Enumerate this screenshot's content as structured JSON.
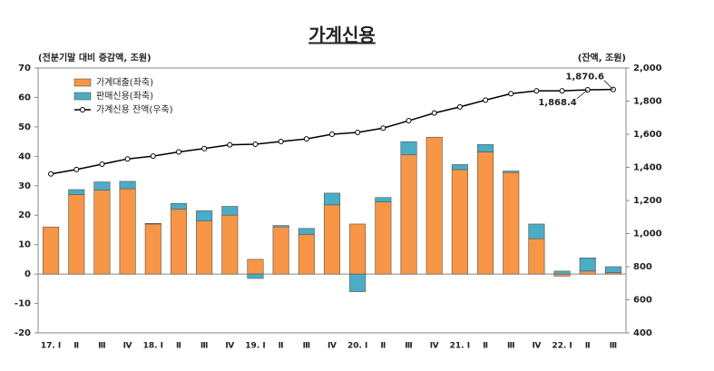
{
  "chart_data": {
    "type": "bar-line",
    "title": "가계신용",
    "y_label": "(전분기말 대비 증감액, 조원)",
    "y2_label": "(잔액, 조원)",
    "categories": [
      "17. Ⅰ",
      "Ⅱ",
      "Ⅲ",
      "Ⅳ",
      "18. Ⅰ",
      "Ⅱ",
      "Ⅲ",
      "Ⅳ",
      "19. Ⅰ",
      "Ⅱ",
      "Ⅲ",
      "Ⅳ",
      "20. Ⅰ",
      "Ⅱ",
      "Ⅲ",
      "Ⅳ",
      "21. Ⅰ",
      "Ⅱ",
      "Ⅲ",
      "Ⅳ",
      "22. Ⅰ",
      "Ⅱ",
      "Ⅲ"
    ],
    "series": [
      {
        "name": "가계대출(좌축)",
        "color": "#f79646",
        "values": [
          16,
          27,
          28.5,
          29,
          17,
          22,
          18,
          20,
          5,
          16,
          13.5,
          23.5,
          17,
          24.5,
          40.5,
          46.5,
          35.5,
          41.5,
          34.5,
          12,
          -0.7,
          1,
          0.5
        ]
      },
      {
        "name": "판매신용(좌축)",
        "color": "#4bacc6",
        "values": [
          0,
          1.7,
          2.8,
          2.5,
          0.2,
          2,
          3.5,
          3,
          -1.5,
          0.5,
          2,
          4,
          -6,
          1.5,
          4.5,
          0,
          1.7,
          2.5,
          0.5,
          5,
          1,
          4.5,
          2
        ]
      },
      {
        "name": "가계신용 잔액(우축)",
        "color": "#000000",
        "axis": "y2",
        "values": [
          1360,
          1387,
          1419,
          1451,
          1468,
          1493,
          1514,
          1536,
          1540,
          1556,
          1572,
          1600,
          1611,
          1637,
          1682,
          1728,
          1765,
          1806,
          1845,
          1862,
          1862,
          1868.4,
          1870.6
        ],
        "value_labels": [
          null,
          null,
          null,
          null,
          null,
          null,
          null,
          null,
          null,
          null,
          null,
          null,
          null,
          null,
          null,
          null,
          null,
          null,
          null,
          null,
          null,
          "1,868.4",
          "1,870.6"
        ]
      }
    ],
    "ylim": [
      -20,
      70
    ],
    "yticks": [
      -20,
      -10,
      0,
      10,
      20,
      30,
      40,
      50,
      60,
      70
    ],
    "y2lim": [
      400,
      2000
    ],
    "y2ticks": [
      400,
      600,
      800,
      {
        "value": 1000,
        "label": "1,000"
      },
      {
        "value": 1200,
        "label": "1,200"
      },
      {
        "value": 1400,
        "label": "1,400"
      },
      {
        "value": 1600,
        "label": "1,600"
      },
      {
        "value": 1800,
        "label": "1,800"
      },
      {
        "value": 2000,
        "label": "2,000"
      }
    ],
    "legend": "top-left"
  }
}
